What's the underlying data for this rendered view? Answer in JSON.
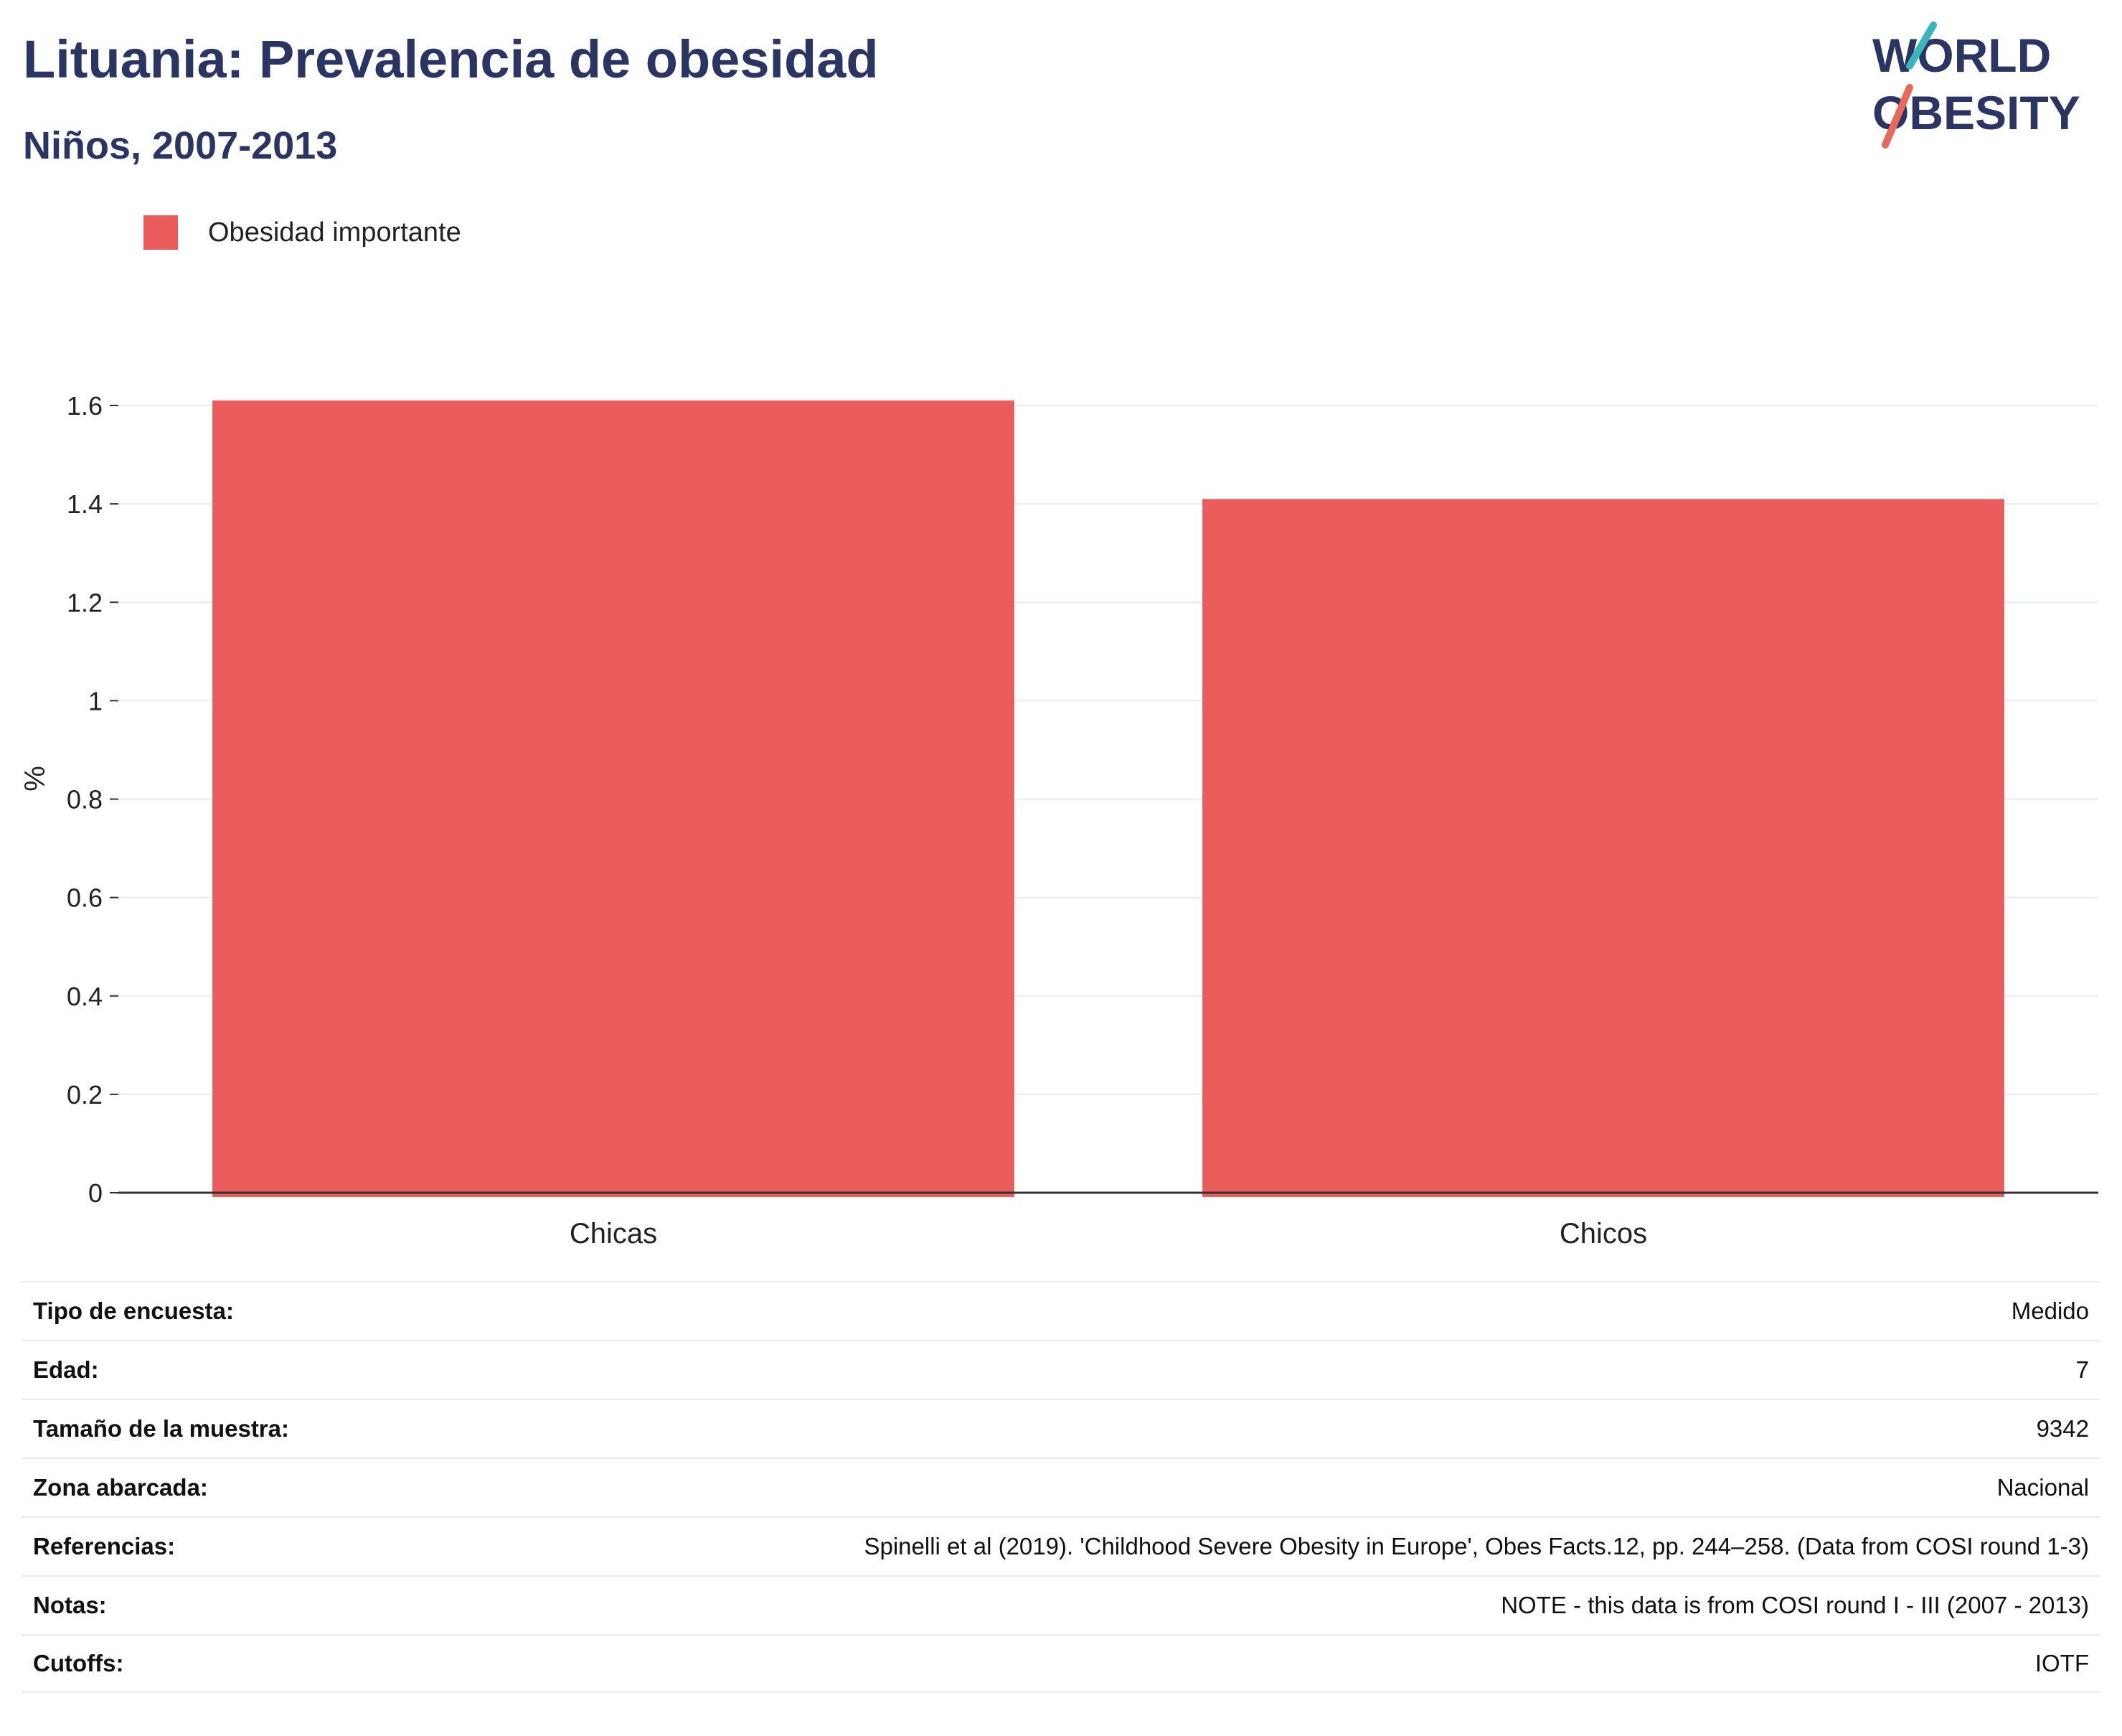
{
  "header": {
    "title": "Lituania: Prevalencia de obesidad",
    "subtitle": "Niños, 2007-2013"
  },
  "logo": {
    "line1": "WORLD",
    "line2": "OBESITY",
    "accent_red": "#e8695a",
    "accent_teal": "#39b5be"
  },
  "chart_data": {
    "type": "bar",
    "title": "Lituania: Prevalencia de obesidad",
    "subtitle": "Niños, 2007-2013",
    "categories": [
      "Chicas",
      "Chicos"
    ],
    "series": [
      {
        "name": "Obesidad importante",
        "values": [
          1.61,
          1.41
        ],
        "color": "#eb5c5c"
      }
    ],
    "ylabel": "%",
    "xlabel": "",
    "ylim": [
      0,
      1.6
    ],
    "yticks": [
      "0",
      "0.2",
      "0.4",
      "0.6",
      "0.8",
      "1",
      "1.2",
      "1.4",
      "1.6"
    ],
    "grid": true,
    "legend_position": "top-left"
  },
  "info": [
    {
      "label": "Tipo de encuesta:",
      "value": "Medido"
    },
    {
      "label": "Edad:",
      "value": "7"
    },
    {
      "label": "Tamaño de la muestra:",
      "value": "9342"
    },
    {
      "label": "Zona abarcada:",
      "value": "Nacional"
    },
    {
      "label": "Referencias:",
      "value": "Spinelli et al (2019). 'Childhood Severe Obesity in Europe', Obes Facts.12, pp. 244–258. (Data from COSI round 1-3)"
    },
    {
      "label": "Notas:",
      "value": "NOTE - this data is from COSI round I - III (2007 - 2013)"
    },
    {
      "label": "Cutoffs:",
      "value": "IOTF"
    }
  ]
}
